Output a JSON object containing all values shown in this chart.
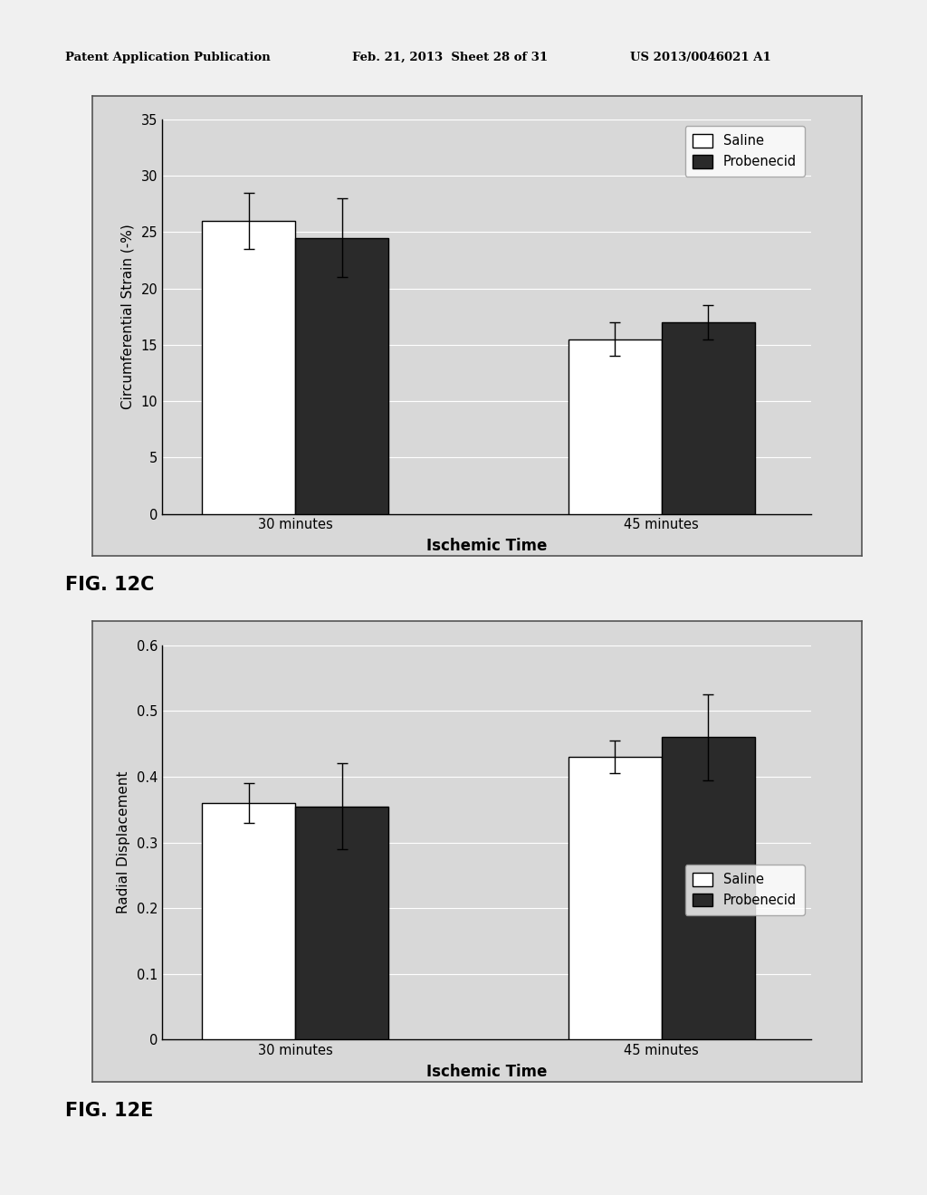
{
  "header_left": "Patent Application Publication",
  "header_mid": "Feb. 21, 2013  Sheet 28 of 31",
  "header_right": "US 2013/0046021 A1",
  "chart1": {
    "ylabel": "Circumferential Strain (-%)",
    "xlabel": "Ischemic Time",
    "groups": [
      "30 minutes",
      "45 minutes"
    ],
    "saline_values": [
      26.0,
      15.5
    ],
    "probenecid_values": [
      24.5,
      17.0
    ],
    "saline_errors": [
      2.5,
      1.5
    ],
    "probenecid_errors": [
      3.5,
      1.5
    ],
    "ylim": [
      0,
      35
    ],
    "yticks": [
      0,
      5,
      10,
      15,
      20,
      25,
      30,
      35
    ],
    "fig_label": "FIG. 12C"
  },
  "chart2": {
    "ylabel": "Radial Displacement",
    "xlabel": "Ischemic Time",
    "groups": [
      "30 minutes",
      "45 minutes"
    ],
    "saline_values": [
      0.36,
      0.43
    ],
    "probenecid_values": [
      0.355,
      0.46
    ],
    "saline_errors": [
      0.03,
      0.025
    ],
    "probenecid_errors": [
      0.065,
      0.065
    ],
    "ylim": [
      0,
      0.6
    ],
    "yticks": [
      0,
      0.1,
      0.2,
      0.3,
      0.4,
      0.5,
      0.6
    ],
    "fig_label": "FIG. 12E"
  },
  "bar_width": 0.28,
  "saline_color": "#ffffff",
  "probenecid_color": "#2a2a2a",
  "bar_edgecolor": "#000000",
  "plot_bg_color": "#d8d8d8",
  "page_bg_color": "#f0f0f0",
  "legend_labels": [
    "Saline",
    "Probenecid"
  ]
}
